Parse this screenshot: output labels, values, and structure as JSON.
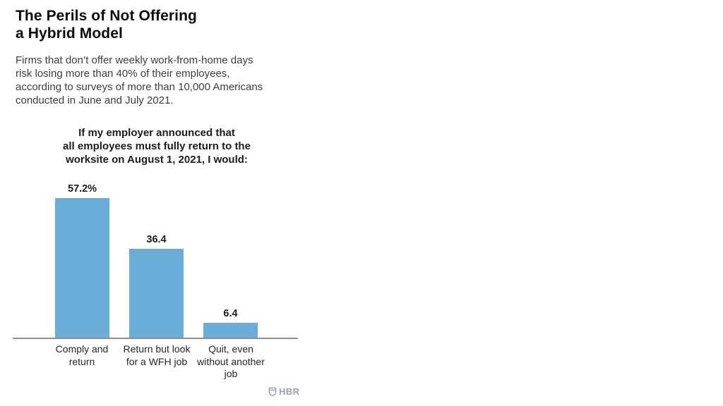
{
  "header": {
    "title_lines": [
      "The Perils of Not Offering",
      "a Hybrid Model"
    ],
    "subtitle_lines": [
      "Firms that don’t offer weekly work-from-home days",
      "risk losing more than 40% of their employees,",
      "according to surveys of more than 10,000 Americans",
      "conducted in June and July 2021."
    ]
  },
  "chart_data": {
    "type": "bar",
    "title": "If my employer announced that all employees must fully return to the worksite on August 1, 2021, I would:",
    "title_lines": [
      "If my employer announced that",
      "all employees must fully return to the",
      "worksite on August 1, 2021, I would:"
    ],
    "categories": [
      "Comply and return",
      "Return but look for a WFH job",
      "Quit, even without another job"
    ],
    "category_lines": [
      [
        "Comply and",
        "return"
      ],
      [
        "Return but look",
        "for a WFH job"
      ],
      [
        "Quit, even",
        "without another",
        "job"
      ]
    ],
    "values": [
      57.2,
      36.4,
      6.4
    ],
    "value_labels": [
      "57.2%",
      "36.4",
      "6.4"
    ],
    "unit": "percent of surveyed employees",
    "ylim": [
      0,
      60
    ],
    "grid": false,
    "legend": false,
    "bar_color": "#69add8",
    "axis_line_color": "#8f8f8f"
  },
  "footer": {
    "logo_text": "HBR",
    "logo_icon": "hbr-shield-icon",
    "logo_color": "#98a1aa"
  }
}
